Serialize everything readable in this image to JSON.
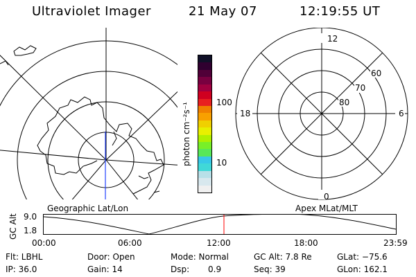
{
  "header": {
    "instrument": "Ultraviolet Imager",
    "date": "21 May 07",
    "time": "12:19:55 UT"
  },
  "colorbar": {
    "unit_label": "photon cm⁻²s⁻¹",
    "ticks": [
      "100",
      "10"
    ],
    "colors": [
      "#f0f0f0",
      "#d8e8ee",
      "#b8e0e8",
      "#40d8d8",
      "#38c8e8",
      "#58e858",
      "#78f028",
      "#b0f000",
      "#e8f000",
      "#f0d000",
      "#f8a000",
      "#f08000",
      "#e82020",
      "#d00020",
      "#a00040",
      "#780040",
      "#500038",
      "#300030",
      "#101028"
    ]
  },
  "left_map": {
    "label": "Geographic Lat/Lon"
  },
  "right_map": {
    "label": "Apex MLat/MLT",
    "mlt_labels": {
      "top": "12",
      "left": "18",
      "right": "6",
      "bottom": "0"
    },
    "lat_labels": [
      "60",
      "70",
      "80"
    ]
  },
  "timeline": {
    "axis_label": "GC Alt",
    "y_ticks": [
      "9.0",
      "1.8"
    ],
    "x_ticks": [
      "00:00",
      "06:00",
      "12:00",
      "18:00",
      "23:59"
    ],
    "current_time_color": "#ff0000"
  },
  "info": {
    "flt": "Flt: LBHL",
    "ip": "IP: 36.0",
    "door": "Door: Open",
    "gain": "Gain: 14",
    "mode": "Mode: Normal",
    "dsp_label": "Dsp:",
    "dsp_value": "0.9",
    "gc_alt": "GC Alt: 7.8 Re",
    "seq": "Seq: 39",
    "glat": "GLat: −75.6",
    "glon": "GLon: 162.1"
  }
}
